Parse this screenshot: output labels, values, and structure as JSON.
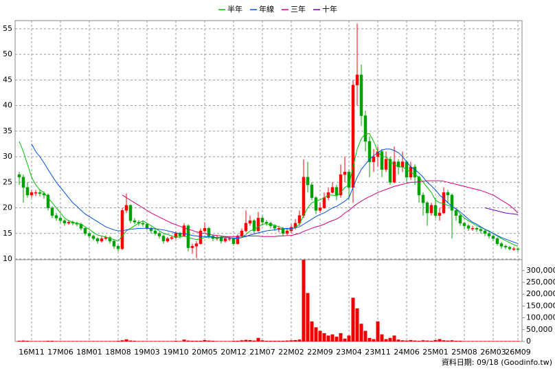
{
  "chart_data": {
    "type": "candlestick",
    "categories": [
      null,
      null,
      null,
      "16M11",
      null,
      null,
      null,
      null,
      null,
      null,
      "17M06",
      null,
      null,
      null,
      null,
      null,
      null,
      "18M01",
      null,
      null,
      null,
      null,
      null,
      null,
      "18M08",
      null,
      null,
      null,
      null,
      null,
      null,
      "19M03",
      null,
      null,
      null,
      null,
      null,
      null,
      "19M10",
      null,
      null,
      null,
      null,
      null,
      null,
      "20M05",
      null,
      null,
      null,
      null,
      null,
      null,
      "20M12",
      null,
      null,
      null,
      null,
      null,
      null,
      "21M07",
      null,
      null,
      null,
      null,
      null,
      null,
      "22M02",
      null,
      null,
      null,
      null,
      null,
      null,
      "22M09",
      null,
      null,
      null,
      null,
      null,
      null,
      "23M04",
      null,
      null,
      null,
      null,
      null,
      null,
      "23M11",
      null,
      null,
      null,
      null,
      null,
      null,
      "24M06",
      null,
      null,
      null,
      null,
      null,
      null,
      "25M01",
      null,
      null,
      null,
      null,
      null,
      null,
      "25M08",
      null,
      null,
      null,
      null,
      null,
      null,
      "26M03",
      null,
      null,
      null,
      null,
      null,
      "26M09"
    ],
    "open": [
      26.5,
      26,
      24,
      22.5,
      23,
      23,
      22.8,
      22.5,
      20,
      18.5,
      18,
      17.5,
      17,
      17.2,
      17,
      16.8,
      16,
      15,
      14.5,
      14,
      13.5,
      14,
      14.2,
      13.5,
      12.5,
      12,
      19.5,
      20.5,
      17.5,
      17.2,
      17,
      16.8,
      16,
      15.5,
      15,
      14.5,
      13.5,
      14,
      14.2,
      15,
      14.5,
      16.5,
      12.2,
      12.5,
      13,
      15.5,
      16,
      14.5,
      14,
      14.2,
      13.5,
      14,
      14,
      13,
      14.5,
      15.5,
      17,
      17.5,
      15.5,
      18,
      17.2,
      17,
      16.5,
      16,
      16,
      15,
      15.5,
      16.2,
      17,
      18.5,
      26,
      24.5,
      22,
      19.5,
      20,
      22,
      23,
      24,
      22.5,
      26.5,
      27,
      24,
      44,
      46,
      38,
      33,
      29,
      30,
      31,
      27.5,
      29.5,
      25,
      29,
      28,
      29,
      26,
      28,
      26,
      22.5,
      21,
      19,
      20.5,
      18.5,
      19,
      23,
      22.5,
      19.5,
      18.5,
      17,
      16.5,
      16,
      16,
      15.8,
      15.5,
      15,
      14.5,
      14,
      13,
      12.5,
      12.3,
      12,
      12
    ],
    "high": [
      27,
      26.5,
      25,
      23.5,
      23.5,
      23.5,
      23.2,
      22.8,
      20.3,
      19,
      18.4,
      17.8,
      17.6,
      17.5,
      17.3,
      17.1,
      16.2,
      15.3,
      14.8,
      14.3,
      14.4,
      14.6,
      14.5,
      13.8,
      12.8,
      20,
      22.8,
      20.7,
      18,
      17.6,
      17.4,
      17.1,
      16.3,
      15.8,
      15.3,
      14.8,
      14.3,
      14.6,
      15.4,
      15.3,
      17,
      16.8,
      13,
      13.5,
      16,
      17.2,
      16.3,
      14.8,
      14.6,
      14.5,
      14.4,
      14.4,
      14.2,
      14.8,
      16,
      19.5,
      18.5,
      17.8,
      19.2,
      18.5,
      17.6,
      17.3,
      16.8,
      16.5,
      16.3,
      16,
      16.8,
      17.8,
      19.5,
      29.5,
      29,
      25,
      22.3,
      21,
      23,
      24,
      25,
      24.5,
      28.5,
      30,
      27.5,
      45,
      56,
      48,
      39,
      34,
      31.5,
      32,
      31.5,
      31,
      30,
      32,
      29.5,
      31,
      29.3,
      29,
      28.5,
      26.3,
      23,
      21.3,
      21,
      22,
      20,
      24,
      23.5,
      22.8,
      20,
      18.8,
      17.3,
      16.8,
      16.5,
      16.3,
      16.1,
      15.8,
      15.3,
      14.8,
      14.3,
      13.3,
      12.8,
      12.6,
      12.4,
      12.3
    ],
    "low": [
      24.5,
      21,
      22,
      22,
      22.3,
      22.2,
      21.8,
      19.5,
      18,
      17.5,
      17,
      16.5,
      16.7,
      16.6,
      16.4,
      15.6,
      14.6,
      14,
      13.6,
      13,
      13.2,
      13.7,
      13,
      12,
      11.5,
      11.8,
      19,
      17,
      16.8,
      16.5,
      16.3,
      15.6,
      15,
      14.6,
      14,
      13,
      13.2,
      13.7,
      13.9,
      14,
      14.3,
      11.5,
      11,
      10.2,
      12.8,
      15.2,
      14,
      13.5,
      13.6,
      13,
      13.2,
      13.5,
      12.6,
      12.8,
      14.2,
      15.2,
      16.5,
      15,
      15.3,
      16.5,
      16.5,
      16,
      15.5,
      15.2,
      14.5,
      14.6,
      15,
      15.8,
      16.5,
      18,
      23,
      21.5,
      18.8,
      19,
      19.8,
      21.5,
      22.8,
      21.5,
      22,
      25,
      21.5,
      21,
      40,
      36,
      31,
      26,
      27,
      28,
      26,
      27,
      24.5,
      24.8,
      26.5,
      27,
      25,
      25.5,
      24.5,
      21,
      18.5,
      16.5,
      18.5,
      18,
      17.5,
      18.8,
      21,
      14,
      17.5,
      16.5,
      15.8,
      15.5,
      15.5,
      15.3,
      15,
      14.5,
      14,
      13.5,
      12.6,
      12,
      11.9,
      11.7,
      11.6,
      11.5
    ],
    "close": [
      26,
      24,
      22.5,
      23,
      23,
      22.8,
      22.5,
      20,
      18.5,
      18,
      17.5,
      17,
      17.2,
      17,
      16.8,
      16,
      15,
      14.5,
      14,
      13.5,
      14,
      14.2,
      13.5,
      12.5,
      12,
      19.5,
      20.5,
      17.5,
      17.2,
      17,
      16.8,
      16,
      15.5,
      15,
      14.5,
      13.5,
      14,
      14.2,
      15,
      14.5,
      16.5,
      12.2,
      12.5,
      13,
      15.5,
      16,
      14.5,
      14,
      14.2,
      13.5,
      14,
      14,
      13,
      14.5,
      15.5,
      17,
      17.5,
      15.5,
      18,
      17.2,
      17,
      16.5,
      16,
      16,
      15,
      15.5,
      16.2,
      17,
      18.5,
      26,
      24.5,
      22,
      19.5,
      20,
      22,
      23,
      24,
      22.5,
      26.5,
      27,
      24,
      44,
      46,
      38,
      33,
      29,
      30,
      31,
      27.5,
      29.5,
      25,
      29,
      28,
      29,
      26,
      28,
      26,
      22.5,
      21,
      19,
      20.5,
      18.5,
      19,
      23,
      22.5,
      19.5,
      18.5,
      17,
      16.5,
      16,
      16,
      15.8,
      15.5,
      15,
      14.5,
      14,
      13,
      12.5,
      12.3,
      12,
      12,
      11.9
    ],
    "up_color": "#ff0000",
    "down_color": "#00a000",
    "volume": [
      3000,
      4000,
      3000,
      2000,
      2000,
      2000,
      2000,
      3000,
      3000,
      2000,
      2000,
      2000,
      2000,
      2000,
      2000,
      2000,
      2000,
      2000,
      2000,
      2000,
      2000,
      2000,
      2000,
      2000,
      3000,
      5000,
      9000,
      4000,
      3000,
      2000,
      2000,
      2000,
      2000,
      2000,
      2000,
      2000,
      2000,
      2000,
      3000,
      2000,
      8000,
      4000,
      3000,
      3000,
      3000,
      6000,
      4000,
      3000,
      2000,
      2000,
      2000,
      2000,
      3000,
      3000,
      5000,
      7000,
      6000,
      4000,
      15000,
      5000,
      3000,
      3000,
      3000,
      3000,
      3000,
      4000,
      5000,
      6000,
      8000,
      345000,
      205000,
      85000,
      60000,
      45000,
      35000,
      25000,
      30000,
      20000,
      35000,
      12000,
      25000,
      185000,
      140000,
      75000,
      45000,
      15000,
      10000,
      85000,
      30000,
      10000,
      15000,
      25000,
      8000,
      5000,
      4000,
      6000,
      4000,
      3000,
      5000,
      4000,
      3000,
      6000,
      10000,
      5000,
      4000,
      5000,
      3000,
      3000,
      2000,
      2000,
      2000,
      2000,
      2000,
      2000,
      2000,
      2000,
      2000,
      2000,
      2000,
      2000,
      2000,
      2000
    ],
    "volume_color": "#ee0000",
    "series": [
      {
        "name": "半年",
        "color": "#00c000",
        "values": [
          33,
          31,
          28.5,
          26,
          24.5,
          23.5,
          23,
          22,
          21,
          20,
          19,
          18,
          17.5,
          17.2,
          17,
          16.8,
          16.3,
          15.8,
          15.2,
          14.7,
          14.5,
          14.3,
          14,
          13.8,
          13.5,
          14.5,
          15.5,
          16,
          16.5,
          17,
          17.5,
          17,
          16.5,
          16,
          15.5,
          15,
          14.8,
          14.5,
          14.3,
          14.3,
          14.5,
          14.2,
          14,
          13.8,
          14,
          14.2,
          14.3,
          14.2,
          14.1,
          14.3,
          14.4,
          14.2,
          14,
          14,
          14.2,
          14.8,
          15.5,
          15.8,
          16.3,
          16.8,
          16.9,
          16.7,
          16.6,
          16.3,
          16,
          15.8,
          15.8,
          16.2,
          16.8,
          18.5,
          20,
          21,
          21.3,
          21.6,
          22,
          22.5,
          22.5,
          22.3,
          23,
          24,
          24.5,
          28,
          31.5,
          33.5,
          34.5,
          34.5,
          33,
          31,
          30,
          30,
          29,
          28.5,
          28,
          28,
          27.5,
          27,
          26.5,
          26,
          25,
          24,
          23,
          21.5,
          21,
          20.8,
          20.5,
          20.2,
          19.8,
          18.8,
          18,
          17.5,
          17,
          16.5,
          16.2,
          15.8,
          15.5,
          15,
          14.5,
          14,
          13.6,
          13.2,
          12.8,
          12.5
        ]
      },
      {
        "name": "年線",
        "color": "#0050e0",
        "values": [
          null,
          null,
          null,
          32.5,
          31,
          30,
          28.8,
          27.5,
          26.2,
          25,
          24,
          23,
          22,
          21,
          20.3,
          19.5,
          18.8,
          18.3,
          17.8,
          17.3,
          16.8,
          16.3,
          16,
          15.7,
          15.5,
          15.5,
          15.7,
          15.8,
          15.9,
          16,
          16,
          16,
          16,
          15.9,
          15.8,
          15.7,
          15.5,
          15.3,
          15.1,
          15,
          15,
          14.8,
          14.6,
          14.5,
          14.4,
          14.4,
          14.4,
          14.3,
          14.2,
          14.2,
          14.2,
          14.2,
          14.1,
          14.1,
          14.2,
          14.4,
          14.7,
          14.9,
          15.1,
          15.3,
          15.5,
          15.6,
          15.7,
          15.8,
          15.9,
          16,
          16,
          16.1,
          16.3,
          16.8,
          17.3,
          17.8,
          18.3,
          18.7,
          19,
          19.5,
          20,
          20.3,
          20.8,
          21.3,
          22,
          24,
          26,
          27.5,
          28.5,
          29.5,
          30.2,
          30.8,
          31.3,
          31.5,
          31.5,
          31.2,
          30.8,
          30,
          29,
          28,
          27.5,
          26.8,
          26,
          25,
          24.3,
          23.5,
          22.5,
          21.8,
          21,
          20.3,
          19.8,
          19.2,
          18.5,
          17.8,
          17.2,
          16.8,
          16.3,
          15.8,
          15.4,
          15,
          14.6,
          14.2,
          13.9,
          13.6,
          13.3,
          13
        ]
      },
      {
        "name": "三年",
        "color": "#d0007a",
        "values": [
          null,
          null,
          null,
          null,
          null,
          null,
          null,
          null,
          null,
          null,
          null,
          null,
          null,
          null,
          null,
          null,
          null,
          null,
          null,
          null,
          null,
          null,
          null,
          null,
          null,
          22.5,
          22,
          21.5,
          21,
          20.5,
          20,
          19.5,
          19,
          18.6,
          18.2,
          17.8,
          17.4,
          17,
          16.7,
          16.4,
          16.1,
          15.8,
          15.6,
          15.3,
          15.1,
          15,
          14.8,
          14.7,
          14.6,
          14.5,
          14.4,
          14.4,
          14.4,
          14.4,
          14.5,
          14.5,
          14.5,
          14.5,
          14.5,
          14.4,
          14.4,
          14.4,
          14.4,
          14.5,
          14.5,
          14.6,
          14.6,
          14.8,
          15,
          15.4,
          15.7,
          16,
          16.3,
          16.5,
          16.8,
          17.2,
          17.5,
          17.8,
          18.3,
          19,
          19.5,
          20.2,
          20.8,
          21.3,
          21.8,
          22.2,
          22.6,
          23,
          23.3,
          23.6,
          23.9,
          24.2,
          24.4,
          24.6,
          24.8,
          25,
          25,
          25.1,
          25.2,
          25.3,
          25.3,
          25.3,
          25.3,
          25.2,
          25,
          24.8,
          24.6,
          24.4,
          24.2,
          24,
          23.8,
          23.6,
          23.4,
          23.1,
          22.8,
          22.5,
          22,
          21.5,
          21,
          20.5,
          19.8,
          19
        ]
      },
      {
        "name": "十年",
        "color": "#7000b0",
        "values": [
          null,
          null,
          null,
          null,
          null,
          null,
          null,
          null,
          null,
          null,
          null,
          null,
          null,
          null,
          null,
          null,
          null,
          null,
          null,
          null,
          null,
          null,
          null,
          null,
          null,
          null,
          null,
          null,
          null,
          null,
          null,
          null,
          null,
          null,
          null,
          null,
          null,
          null,
          null,
          null,
          null,
          null,
          null,
          null,
          null,
          null,
          null,
          null,
          null,
          null,
          null,
          null,
          null,
          null,
          null,
          null,
          null,
          null,
          null,
          null,
          null,
          null,
          null,
          null,
          null,
          null,
          null,
          null,
          null,
          null,
          null,
          null,
          null,
          null,
          null,
          null,
          null,
          null,
          null,
          null,
          null,
          null,
          null,
          null,
          null,
          null,
          null,
          null,
          null,
          null,
          null,
          null,
          null,
          null,
          null,
          null,
          null,
          null,
          null,
          null,
          null,
          null,
          null,
          null,
          null,
          null,
          null,
          null,
          null,
          null,
          null,
          null,
          null,
          20,
          19.8,
          19.6,
          19.4,
          19.2,
          19,
          18.9,
          18.8,
          18.7
        ]
      }
    ],
    "ylim": [
      10,
      56.6
    ],
    "yticks": [
      10,
      15,
      20,
      25,
      30,
      35,
      40,
      45,
      50,
      55
    ],
    "y2lim": [
      0,
      346000
    ],
    "y2ticks": [
      0,
      {
        "value": 50000,
        "label": "50,000"
      },
      {
        "value": 100000,
        "label": "100,000"
      },
      {
        "value": 150000,
        "label": "150,000"
      },
      {
        "value": 200000,
        "label": "200,000"
      },
      {
        "value": 250000,
        "label": "250,000"
      },
      {
        "value": 300000,
        "label": "300,000"
      }
    ],
    "grid": true,
    "legend": "top",
    "source": "資料日期: 09/18 (Goodinfo.tw)"
  }
}
